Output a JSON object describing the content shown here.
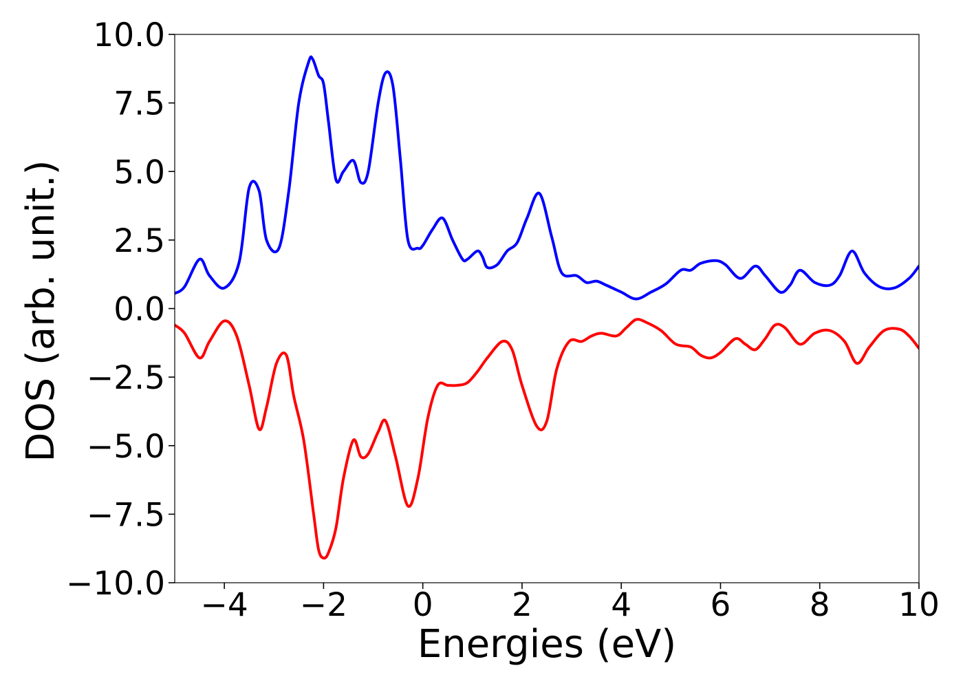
{
  "chart_data": {
    "type": "line",
    "title": "",
    "xlabel": "Energies (eV)",
    "ylabel": "DOS (arb. unit.)",
    "xlim": [
      -5,
      10
    ],
    "ylim": [
      -10,
      10
    ],
    "grid": false,
    "x_ticks": [
      -4,
      -2,
      0,
      2,
      4,
      6,
      8,
      10
    ],
    "x_tick_labels": [
      "−4",
      "−2",
      "0",
      "2",
      "4",
      "6",
      "8",
      "10"
    ],
    "y_ticks": [
      10,
      7.5,
      5,
      2.5,
      0,
      -2.5,
      -5,
      -7.5,
      -10
    ],
    "y_tick_labels": [
      "10.0",
      "7.5",
      "5.0",
      "2.5",
      "0.0",
      "−2.5",
      "−5.0",
      "−7.5",
      "−10.0"
    ],
    "series": [
      {
        "color": "#0000ff",
        "x": [
          -5.0,
          -4.8,
          -4.5,
          -4.3,
          -4.0,
          -3.7,
          -3.5,
          -3.3,
          -3.15,
          -2.9,
          -2.7,
          -2.5,
          -2.3,
          -2.22,
          -2.1,
          -2.0,
          -1.9,
          -1.75,
          -1.6,
          -1.4,
          -1.25,
          -1.1,
          -0.9,
          -0.75,
          -0.6,
          -0.45,
          -0.3,
          -0.1,
          0.0,
          0.2,
          0.4,
          0.6,
          0.8,
          0.9,
          1.1,
          1.2,
          1.3,
          1.5,
          1.7,
          1.9,
          2.1,
          2.35,
          2.6,
          2.8,
          3.1,
          3.3,
          3.5,
          3.7,
          4.0,
          4.3,
          4.6,
          4.9,
          5.2,
          5.4,
          5.6,
          5.9,
          6.1,
          6.4,
          6.7,
          6.9,
          7.2,
          7.4,
          7.6,
          7.9,
          8.2,
          8.4,
          8.65,
          8.9,
          9.2,
          9.5,
          9.8,
          10.0
        ],
        "values": [
          0.55,
          0.8,
          1.8,
          1.2,
          0.75,
          1.7,
          4.4,
          4.3,
          2.5,
          2.2,
          4.3,
          7.5,
          9.0,
          9.1,
          8.5,
          8.2,
          6.8,
          4.7,
          5.0,
          5.4,
          4.6,
          5.0,
          7.5,
          8.6,
          8.1,
          5.4,
          2.5,
          2.2,
          2.3,
          2.9,
          3.3,
          2.5,
          1.8,
          1.8,
          2.1,
          1.9,
          1.5,
          1.6,
          2.1,
          2.4,
          3.3,
          4.2,
          2.6,
          1.3,
          1.2,
          0.95,
          1.0,
          0.85,
          0.6,
          0.35,
          0.6,
          0.9,
          1.4,
          1.4,
          1.65,
          1.75,
          1.6,
          1.1,
          1.55,
          1.2,
          0.6,
          0.85,
          1.4,
          0.95,
          0.85,
          1.2,
          2.1,
          1.3,
          0.8,
          0.75,
          1.1,
          1.55
        ]
      },
      {
        "color": "#ff0000",
        "x": [
          -5.0,
          -4.8,
          -4.5,
          -4.3,
          -4.0,
          -3.75,
          -3.5,
          -3.3,
          -3.15,
          -2.95,
          -2.75,
          -2.6,
          -2.4,
          -2.2,
          -2.1,
          -2.0,
          -1.9,
          -1.75,
          -1.6,
          -1.4,
          -1.25,
          -1.1,
          -0.9,
          -0.75,
          -0.55,
          -0.3,
          -0.1,
          0.1,
          0.3,
          0.5,
          0.7,
          0.9,
          1.1,
          1.3,
          1.6,
          1.8,
          2.0,
          2.3,
          2.5,
          2.7,
          2.95,
          3.2,
          3.4,
          3.6,
          3.9,
          4.1,
          4.3,
          4.5,
          4.8,
          5.1,
          5.4,
          5.6,
          5.8,
          6.0,
          6.3,
          6.5,
          6.7,
          6.9,
          7.1,
          7.3,
          7.6,
          7.9,
          8.2,
          8.5,
          8.75,
          9.0,
          9.3,
          9.6,
          9.8,
          10.0
        ],
        "values": [
          -0.6,
          -0.9,
          -1.8,
          -1.2,
          -0.45,
          -1.0,
          -2.8,
          -4.4,
          -3.6,
          -2.0,
          -1.7,
          -3.2,
          -4.8,
          -7.5,
          -8.8,
          -9.1,
          -8.9,
          -8.0,
          -6.2,
          -4.8,
          -5.4,
          -5.3,
          -4.5,
          -4.1,
          -5.4,
          -7.2,
          -6.2,
          -4.0,
          -2.8,
          -2.8,
          -2.8,
          -2.7,
          -2.3,
          -1.8,
          -1.2,
          -1.5,
          -2.8,
          -4.3,
          -4.1,
          -2.2,
          -1.2,
          -1.2,
          -1.0,
          -0.9,
          -1.0,
          -0.7,
          -0.4,
          -0.5,
          -0.8,
          -1.3,
          -1.4,
          -1.7,
          -1.8,
          -1.6,
          -1.1,
          -1.3,
          -1.5,
          -1.1,
          -0.6,
          -0.7,
          -1.3,
          -0.9,
          -0.8,
          -1.2,
          -2.0,
          -1.4,
          -0.8,
          -0.75,
          -1.0,
          -1.45
        ]
      }
    ]
  }
}
